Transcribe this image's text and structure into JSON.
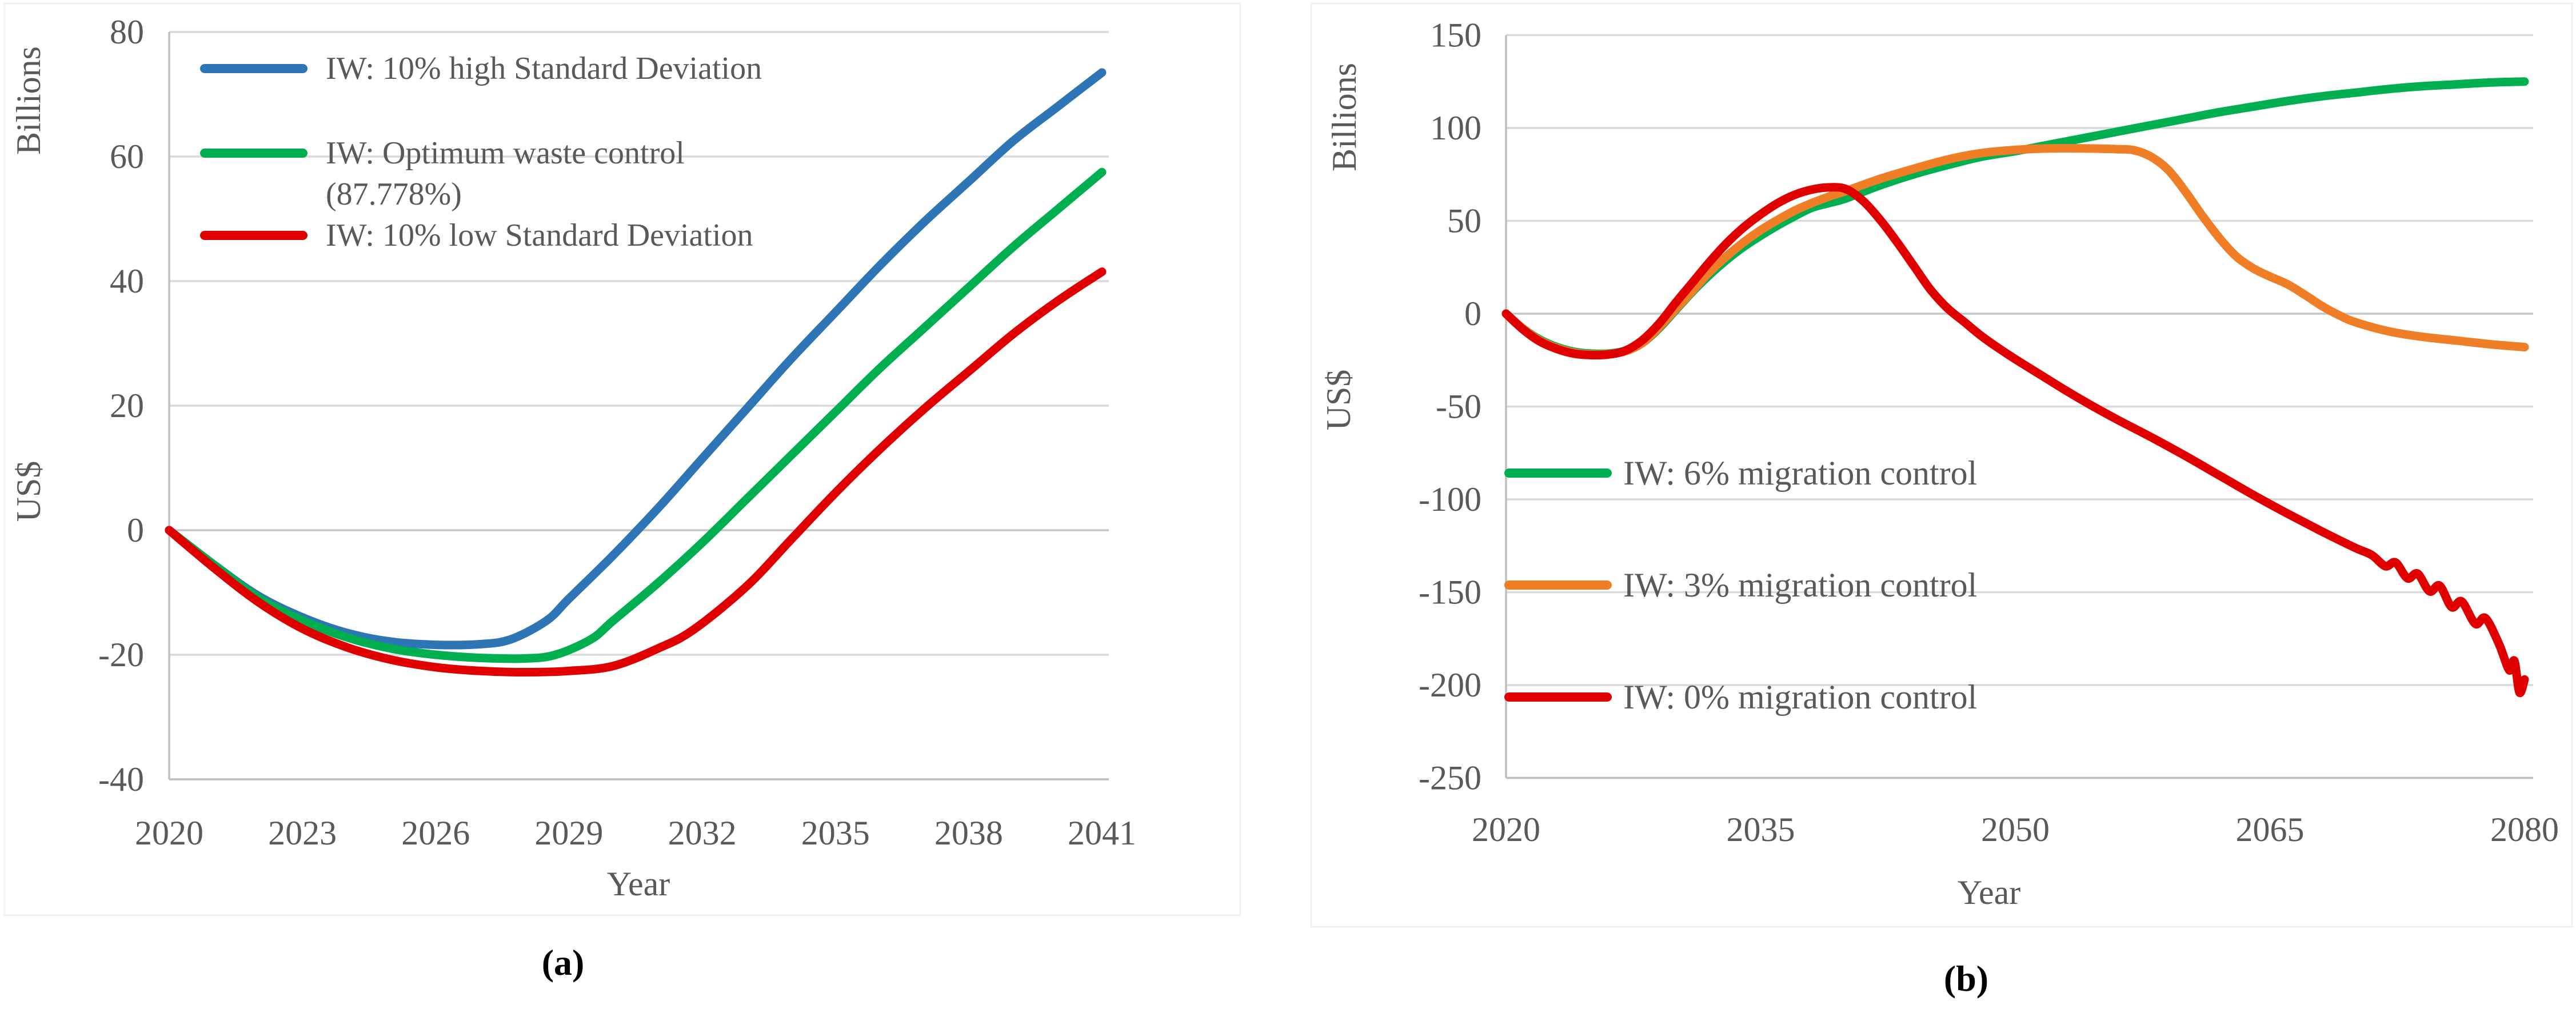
{
  "figure": {
    "background": "#ffffff",
    "text_color": "#595959",
    "gridline_color": "#d9d9d9",
    "axis_color": "#bfbfbf"
  },
  "chart_data": [
    {
      "id": "a",
      "type": "line",
      "caption": "(a)",
      "xlabel": "Year",
      "ylabel_top": "Billions",
      "ylabel_bottom": "US$",
      "xlim": [
        2020,
        2041
      ],
      "ylim": [
        -40,
        80
      ],
      "xticks": [
        2020,
        2023,
        2026,
        2029,
        2032,
        2035,
        2038,
        2041
      ],
      "yticks": [
        80,
        60,
        40,
        20,
        0,
        -20,
        -40
      ],
      "grid": "horizontal",
      "legend_position": "upper-left-inside",
      "series": [
        {
          "name": "IW: 10% high Standard Deviation",
          "color": "#2E75B6",
          "legend_lines": [
            "IW: 10% high Standard Deviation"
          ],
          "points": [
            [
              2020,
              0
            ],
            [
              2021,
              -5.5
            ],
            [
              2022,
              -10.5
            ],
            [
              2023,
              -14
            ],
            [
              2024,
              -16.5
            ],
            [
              2025,
              -17.9
            ],
            [
              2026,
              -18.4
            ],
            [
              2027,
              -18.3
            ],
            [
              2027.7,
              -17.5
            ],
            [
              2028.5,
              -14.5
            ],
            [
              2029,
              -11
            ],
            [
              2030,
              -4
            ],
            [
              2031,
              3.5
            ],
            [
              2032,
              11.5
            ],
            [
              2033,
              19.5
            ],
            [
              2034,
              27.5
            ],
            [
              2035,
              35
            ],
            [
              2036,
              42.5
            ],
            [
              2037,
              49.5
            ],
            [
              2038,
              56
            ],
            [
              2039,
              62.5
            ],
            [
              2040,
              68
            ],
            [
              2041,
              73.5
            ]
          ]
        },
        {
          "name": "IW: Optimum waste control (87.778%)",
          "color": "#00B050",
          "legend_lines": [
            "IW: Optimum waste control",
            "(87.778%)"
          ],
          "points": [
            [
              2020,
              0
            ],
            [
              2021,
              -5.5
            ],
            [
              2022,
              -10.8
            ],
            [
              2023,
              -14.5
            ],
            [
              2024,
              -17.2
            ],
            [
              2025,
              -19
            ],
            [
              2026,
              -20
            ],
            [
              2027,
              -20.5
            ],
            [
              2028,
              -20.6
            ],
            [
              2028.7,
              -20
            ],
            [
              2029.5,
              -17.5
            ],
            [
              2030,
              -14.5
            ],
            [
              2031,
              -8.5
            ],
            [
              2032,
              -2
            ],
            [
              2033,
              5
            ],
            [
              2034,
              12
            ],
            [
              2035,
              19
            ],
            [
              2036,
              26
            ],
            [
              2037,
              32.5
            ],
            [
              2038,
              39
            ],
            [
              2039,
              45.5
            ],
            [
              2040,
              51.5
            ],
            [
              2041,
              57.5
            ]
          ]
        },
        {
          "name": "IW: 10% low Standard Deviation",
          "color": "#E00000",
          "legend_lines": [
            "IW: 10% low Standard Deviation"
          ],
          "points": [
            [
              2020,
              0
            ],
            [
              2021,
              -6
            ],
            [
              2022,
              -11.5
            ],
            [
              2023,
              -15.8
            ],
            [
              2024,
              -18.8
            ],
            [
              2025,
              -20.8
            ],
            [
              2026,
              -22
            ],
            [
              2027,
              -22.6
            ],
            [
              2028,
              -22.8
            ],
            [
              2029,
              -22.6
            ],
            [
              2030,
              -21.8
            ],
            [
              2031,
              -19
            ],
            [
              2031.8,
              -16
            ],
            [
              2033,
              -9
            ],
            [
              2034,
              -1.5
            ],
            [
              2035,
              6
            ],
            [
              2036,
              13
            ],
            [
              2037,
              19.5
            ],
            [
              2038,
              25.5
            ],
            [
              2039,
              31.5
            ],
            [
              2040,
              36.8
            ],
            [
              2041,
              41.5
            ]
          ]
        }
      ]
    },
    {
      "id": "b",
      "type": "line",
      "caption": "(b)",
      "xlabel": "Year",
      "ylabel_top": "Billions",
      "ylabel_bottom": "US$",
      "xlim": [
        2020,
        2080
      ],
      "ylim": [
        -250,
        150
      ],
      "xticks": [
        2020,
        2035,
        2050,
        2065,
        2080
      ],
      "yticks": [
        150,
        100,
        50,
        0,
        -50,
        -100,
        -150,
        -200,
        -250
      ],
      "grid": "horizontal",
      "legend_position": "left-inside",
      "series": [
        {
          "name": "IW: 6% migration control",
          "color": "#00B050",
          "legend_lines": [
            "IW: 6% migration control"
          ],
          "points": [
            [
              2020,
              0
            ],
            [
              2021,
              -8
            ],
            [
              2022,
              -14
            ],
            [
              2023,
              -18
            ],
            [
              2024,
              -20.5
            ],
            [
              2025,
              -21.5
            ],
            [
              2026,
              -21.5
            ],
            [
              2027,
              -20
            ],
            [
              2028,
              -16
            ],
            [
              2029,
              -8
            ],
            [
              2030,
              2
            ],
            [
              2031,
              12
            ],
            [
              2032,
              21
            ],
            [
              2033,
              29
            ],
            [
              2034,
              36
            ],
            [
              2035,
              42
            ],
            [
              2036,
              47.5
            ],
            [
              2037,
              52.5
            ],
            [
              2038,
              57
            ],
            [
              2039,
              59.5
            ],
            [
              2040,
              62
            ],
            [
              2042,
              69
            ],
            [
              2044,
              75
            ],
            [
              2046,
              80
            ],
            [
              2048,
              84.5
            ],
            [
              2050,
              87.5
            ],
            [
              2052,
              91
            ],
            [
              2054,
              94.5
            ],
            [
              2056,
              98
            ],
            [
              2058,
              101.5
            ],
            [
              2060,
              105
            ],
            [
              2062,
              108.5
            ],
            [
              2064,
              111.5
            ],
            [
              2066,
              114.5
            ],
            [
              2068,
              117
            ],
            [
              2070,
              119
            ],
            [
              2072,
              121
            ],
            [
              2074,
              122.5
            ],
            [
              2076,
              123.5
            ],
            [
              2078,
              124.5
            ],
            [
              2080,
              125
            ]
          ]
        },
        {
          "name": "IW: 3% migration control",
          "color": "#F07E26",
          "legend_lines": [
            "IW: 3% migration control"
          ],
          "points": [
            [
              2020,
              0
            ],
            [
              2021,
              -8
            ],
            [
              2022,
              -14.5
            ],
            [
              2023,
              -18.5
            ],
            [
              2024,
              -21
            ],
            [
              2025,
              -22
            ],
            [
              2026,
              -21.8
            ],
            [
              2027,
              -20.3
            ],
            [
              2028,
              -16
            ],
            [
              2029,
              -7.5
            ],
            [
              2030,
              2.5
            ],
            [
              2031,
              12.5
            ],
            [
              2032,
              22.5
            ],
            [
              2033,
              31
            ],
            [
              2034,
              38.5
            ],
            [
              2035,
              45
            ],
            [
              2036,
              50.5
            ],
            [
              2037,
              55.5
            ],
            [
              2038,
              59.5
            ],
            [
              2039,
              63
            ],
            [
              2040,
              66
            ],
            [
              2042,
              72.5
            ],
            [
              2044,
              78
            ],
            [
              2046,
              83
            ],
            [
              2048,
              86.5
            ],
            [
              2050,
              88.2
            ],
            [
              2052,
              89
            ],
            [
              2054,
              89
            ],
            [
              2056,
              88.6
            ],
            [
              2057,
              88
            ],
            [
              2058,
              84.5
            ],
            [
              2059,
              77.5
            ],
            [
              2060,
              66
            ],
            [
              2061,
              53
            ],
            [
              2062,
              41
            ],
            [
              2063,
              31
            ],
            [
              2064,
              24.5
            ],
            [
              2065,
              20
            ],
            [
              2066,
              16
            ],
            [
              2067,
              10.5
            ],
            [
              2068,
              4.5
            ],
            [
              2069,
              -0.5
            ],
            [
              2070,
              -4.5
            ],
            [
              2072,
              -9.5
            ],
            [
              2074,
              -12.5
            ],
            [
              2076,
              -14.5
            ],
            [
              2078,
              -16.5
            ],
            [
              2080,
              -18
            ]
          ]
        },
        {
          "name": "IW: 0% migration control",
          "color": "#E00000",
          "legend_lines": [
            "IW: 0% migration control"
          ],
          "points": [
            [
              2020,
              0
            ],
            [
              2021,
              -8.5
            ],
            [
              2022,
              -15
            ],
            [
              2023,
              -19
            ],
            [
              2024,
              -21.5
            ],
            [
              2025,
              -22.3
            ],
            [
              2026,
              -22
            ],
            [
              2027,
              -20
            ],
            [
              2028,
              -14.5
            ],
            [
              2029,
              -5.5
            ],
            [
              2030,
              6
            ],
            [
              2031,
              17
            ],
            [
              2032,
              28
            ],
            [
              2033,
              38
            ],
            [
              2034,
              46.5
            ],
            [
              2035,
              53.5
            ],
            [
              2036,
              59.5
            ],
            [
              2037,
              64
            ],
            [
              2038,
              66.8
            ],
            [
              2039,
              68
            ],
            [
              2040,
              67.2
            ],
            [
              2041,
              61
            ],
            [
              2042,
              51
            ],
            [
              2043,
              39
            ],
            [
              2044,
              26
            ],
            [
              2045,
              13
            ],
            [
              2046,
              3
            ],
            [
              2047,
              -4.5
            ],
            [
              2048,
              -12
            ],
            [
              2049,
              -18.5
            ],
            [
              2050,
              -24.5
            ],
            [
              2051.5,
              -33
            ],
            [
              2053,
              -41.5
            ],
            [
              2054.5,
              -49.5
            ],
            [
              2056,
              -57
            ],
            [
              2058,
              -66.5
            ],
            [
              2060,
              -76.5
            ],
            [
              2062,
              -87
            ],
            [
              2064,
              -97.5
            ],
            [
              2066,
              -107.5
            ],
            [
              2068,
              -117
            ],
            [
              2070,
              -126
            ],
            [
              2071,
              -130
            ],
            [
              2071.8,
              -136
            ],
            [
              2072.4,
              -134
            ],
            [
              2073.1,
              -142.5
            ],
            [
              2073.7,
              -140
            ],
            [
              2074.4,
              -149.5
            ],
            [
              2075,
              -146.5
            ],
            [
              2075.7,
              -158
            ],
            [
              2076.3,
              -155
            ],
            [
              2077.1,
              -167
            ],
            [
              2077.7,
              -164
            ],
            [
              2078.5,
              -178
            ],
            [
              2079.1,
              -192
            ],
            [
              2079.4,
              -187
            ],
            [
              2079.7,
              -204
            ],
            [
              2080,
              -197
            ]
          ]
        }
      ]
    }
  ]
}
